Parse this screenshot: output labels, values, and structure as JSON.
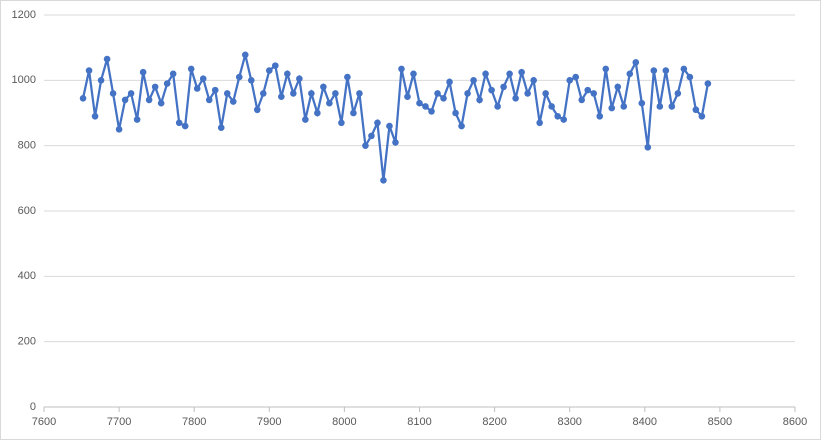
{
  "chart_data": {
    "type": "scatter",
    "lines": true,
    "color": "#4472c4",
    "grid": true,
    "x": [
      7652,
      7660,
      7668,
      7676,
      7684,
      7692,
      7700,
      7708,
      7716,
      7724,
      7732,
      7740,
      7748,
      7756,
      7764,
      7772,
      7780,
      7788,
      7796,
      7804,
      7812,
      7820,
      7828,
      7836,
      7844,
      7852,
      7860,
      7868,
      7876,
      7884,
      7892,
      7900,
      7908,
      7916,
      7924,
      7932,
      7940,
      7948,
      7956,
      7964,
      7972,
      7980,
      7988,
      7996,
      8004,
      8012,
      8020,
      8028,
      8036,
      8044,
      8052,
      8060,
      8068,
      8076,
      8084,
      8092,
      8100,
      8108,
      8116,
      8124,
      8132,
      8140,
      8148,
      8156,
      8164,
      8172,
      8180,
      8188,
      8196,
      8204,
      8212,
      8220,
      8228,
      8236,
      8244,
      8252,
      8260,
      8268,
      8276,
      8284,
      8292,
      8300,
      8308,
      8316,
      8324,
      8332,
      8340,
      8348,
      8356,
      8364,
      8372,
      8380,
      8388,
      8396,
      8404,
      8412,
      8420,
      8428,
      8436,
      8444,
      8452,
      8460,
      8468,
      8476,
      8484
    ],
    "values": [
      945,
      1030,
      890,
      1000,
      1065,
      960,
      850,
      940,
      960,
      880,
      1025,
      940,
      980,
      930,
      990,
      1020,
      870,
      860,
      1035,
      975,
      1005,
      940,
      970,
      855,
      960,
      935,
      1010,
      1078,
      1000,
      910,
      960,
      1030,
      1045,
      950,
      1020,
      960,
      1005,
      880,
      960,
      900,
      980,
      930,
      960,
      870,
      1010,
      900,
      960,
      800,
      830,
      870,
      694,
      860,
      810,
      1035,
      950,
      1020,
      930,
      920,
      905,
      960,
      945,
      995,
      900,
      860,
      960,
      1000,
      940,
      1020,
      970,
      920,
      980,
      1020,
      945,
      1025,
      960,
      1000,
      870,
      960,
      920,
      890,
      880,
      1000,
      1010,
      940,
      970,
      960,
      890,
      1035,
      915,
      980,
      920,
      1020,
      1055,
      930,
      795,
      1030,
      920,
      1030,
      920,
      960,
      1035,
      1010,
      910,
      890,
      990
    ],
    "xlim": [
      7600,
      8600
    ],
    "xticks": [
      7600,
      7700,
      7800,
      7900,
      8000,
      8100,
      8200,
      8300,
      8400,
      8500,
      8600
    ],
    "ylim": [
      0,
      1200
    ],
    "yticks": [
      0,
      200,
      400,
      600,
      800,
      1000,
      1200
    ]
  }
}
